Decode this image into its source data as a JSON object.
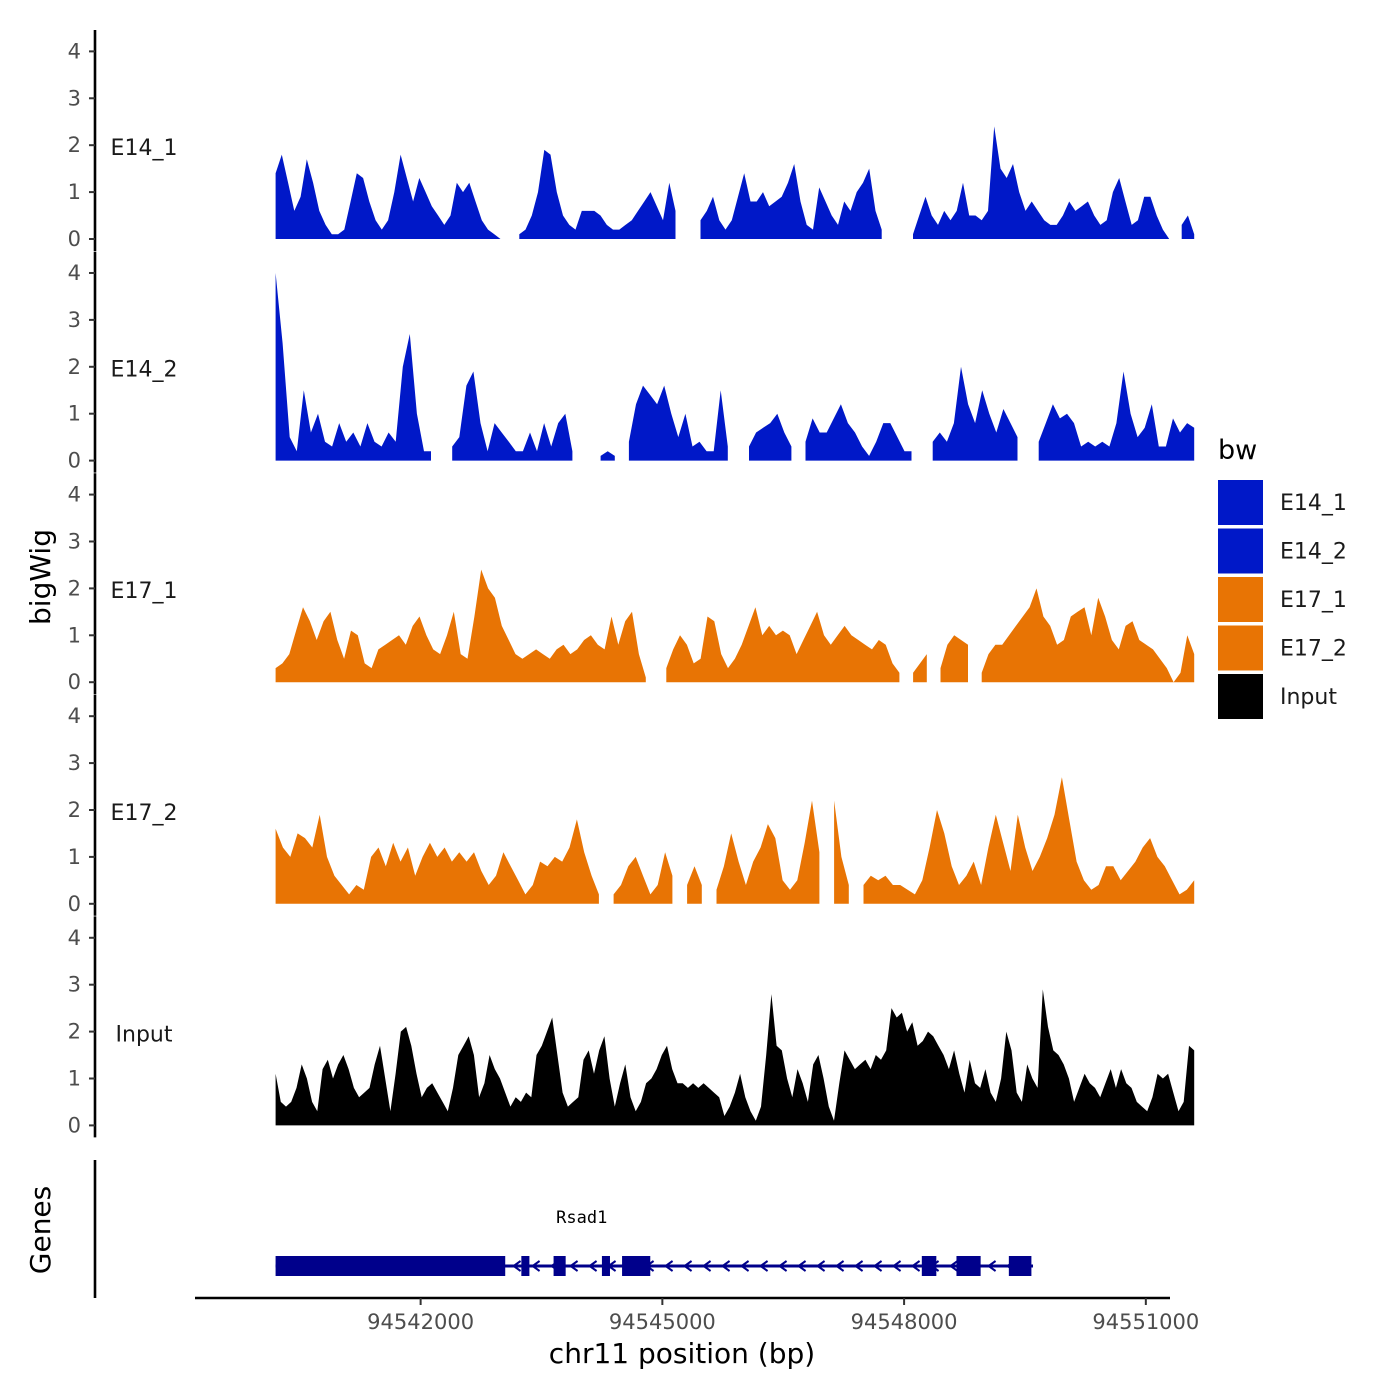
{
  "chart_data": {
    "type": "area",
    "chromosome": "chr11",
    "xlabel": "chr11 position (bp)",
    "ylabel": "bigWig",
    "genes_label": "Genes",
    "xlim": [
      94539200,
      94551300
    ],
    "data_x_range": [
      94540200,
      94551600
    ],
    "xticks": [
      94542000,
      94545000,
      94548000,
      94551000
    ],
    "xtick_labels": [
      "94542000",
      "94545000",
      "94548000",
      "94551000"
    ],
    "ylim": [
      0,
      4.2
    ],
    "yticks": [
      0,
      1,
      2,
      3,
      4
    ],
    "ytick_labels": [
      "0",
      "1",
      "2",
      "3",
      "4"
    ],
    "legend": {
      "title": "bw",
      "position": "right",
      "entries": [
        {
          "name": "E14_1",
          "color": "#0018c8"
        },
        {
          "name": "E14_2",
          "color": "#0018c8"
        },
        {
          "name": "E17_1",
          "color": "#e87404"
        },
        {
          "name": "E17_2",
          "color": "#e87404"
        },
        {
          "name": "Input",
          "color": "#000000"
        }
      ]
    },
    "series": [
      {
        "name": "E14_1",
        "color": "#0018c8",
        "values": [
          1.4,
          1.8,
          1.2,
          0.6,
          0.9,
          1.7,
          1.2,
          0.6,
          0.3,
          0.1,
          0.1,
          0.2,
          0.8,
          1.4,
          1.3,
          0.8,
          0.4,
          0.2,
          0.4,
          1.0,
          1.8,
          1.3,
          0.8,
          1.3,
          1.0,
          0.7,
          0.5,
          0.3,
          0.5,
          1.2,
          1.0,
          1.2,
          0.8,
          0.4,
          0.2,
          0.1,
          0.0,
          null,
          null,
          0.1,
          0.2,
          0.5,
          1.0,
          1.9,
          1.8,
          1.0,
          0.5,
          0.3,
          0.2,
          0.6,
          0.6,
          0.6,
          0.5,
          0.3,
          0.2,
          0.2,
          0.3,
          0.4,
          0.6,
          0.8,
          1.0,
          0.7,
          0.4,
          1.2,
          0.6,
          null,
          null,
          null,
          0.4,
          0.6,
          0.9,
          0.4,
          0.2,
          0.4,
          0.9,
          1.4,
          0.8,
          0.8,
          1.0,
          0.7,
          0.8,
          0.9,
          1.2,
          1.6,
          0.8,
          0.3,
          0.2,
          1.1,
          0.8,
          0.5,
          0.3,
          0.8,
          0.6,
          1.0,
          1.2,
          1.5,
          0.6,
          0.2,
          null,
          null,
          null,
          null,
          0.1,
          0.5,
          0.9,
          0.5,
          0.3,
          0.6,
          0.4,
          0.6,
          1.2,
          0.5,
          0.5,
          0.4,
          0.6,
          2.4,
          1.5,
          1.3,
          1.6,
          1.0,
          0.6,
          0.8,
          0.6,
          0.4,
          0.3,
          0.3,
          0.5,
          0.8,
          0.6,
          0.7,
          0.8,
          0.5,
          0.3,
          0.4,
          1.0,
          1.3,
          0.8,
          0.3,
          0.4,
          0.9,
          0.9,
          0.5,
          0.2,
          0.0,
          null,
          0.3,
          0.5,
          0.1
        ]
      },
      {
        "name": "E14_2",
        "color": "#0018c8",
        "values": [
          4.0,
          2.5,
          0.5,
          0.2,
          1.5,
          0.6,
          1.0,
          0.4,
          0.3,
          0.8,
          0.4,
          0.6,
          0.3,
          0.8,
          0.4,
          0.3,
          0.6,
          0.4,
          2.0,
          2.7,
          1.0,
          0.2,
          0.2,
          null,
          null,
          0.3,
          0.5,
          1.6,
          1.9,
          0.8,
          0.2,
          0.8,
          0.6,
          0.4,
          0.2,
          0.2,
          0.6,
          0.2,
          0.8,
          0.3,
          0.8,
          1.0,
          0.2,
          null,
          null,
          null,
          0.1,
          0.2,
          0.1,
          null,
          0.4,
          1.2,
          1.6,
          1.4,
          1.2,
          1.6,
          1.0,
          0.5,
          1.0,
          0.3,
          0.4,
          0.2,
          0.2,
          1.5,
          0.3,
          null,
          null,
          0.3,
          0.6,
          0.7,
          0.8,
          1.0,
          0.6,
          0.3,
          null,
          0.4,
          0.9,
          0.6,
          0.6,
          0.9,
          1.2,
          0.8,
          0.6,
          0.3,
          0.1,
          0.4,
          0.8,
          0.8,
          0.5,
          0.2,
          0.2,
          null,
          null,
          0.4,
          0.6,
          0.4,
          0.8,
          2.0,
          1.2,
          0.8,
          1.5,
          1.0,
          0.6,
          1.1,
          0.8,
          0.5,
          null,
          null,
          0.4,
          0.8,
          1.2,
          0.9,
          1.0,
          0.8,
          0.3,
          0.4,
          0.3,
          0.4,
          0.3,
          0.8,
          1.9,
          1.0,
          0.5,
          0.7,
          1.2,
          0.3,
          0.3,
          0.9,
          0.6,
          0.8,
          0.7
        ]
      },
      {
        "name": "E17_1",
        "color": "#e87404",
        "values": [
          0.3,
          0.4,
          0.6,
          1.1,
          1.6,
          1.3,
          0.9,
          1.3,
          1.5,
          0.9,
          0.5,
          1.1,
          1.0,
          0.4,
          0.3,
          0.7,
          0.8,
          0.9,
          1.0,
          0.8,
          1.2,
          1.4,
          1.0,
          0.7,
          0.6,
          1.0,
          1.5,
          0.6,
          0.5,
          1.4,
          2.4,
          2.0,
          1.8,
          1.2,
          0.9,
          0.6,
          0.5,
          0.6,
          0.7,
          0.6,
          0.5,
          0.7,
          0.8,
          0.6,
          0.7,
          0.9,
          1.0,
          0.8,
          0.7,
          1.4,
          0.8,
          1.3,
          1.5,
          0.6,
          0.1,
          null,
          null,
          0.3,
          0.7,
          1.0,
          0.8,
          0.4,
          0.5,
          1.4,
          1.3,
          0.6,
          0.3,
          0.5,
          0.8,
          1.2,
          1.6,
          1.0,
          1.2,
          1.0,
          1.1,
          1.0,
          0.6,
          0.9,
          1.2,
          1.5,
          1.0,
          0.8,
          1.0,
          1.2,
          1.0,
          0.9,
          0.8,
          0.7,
          0.9,
          0.8,
          0.4,
          0.2,
          null,
          0.2,
          0.4,
          0.6,
          null,
          0.3,
          0.8,
          1.0,
          0.9,
          0.8,
          null,
          0.2,
          0.6,
          0.8,
          0.8,
          1.0,
          1.2,
          1.4,
          1.6,
          2.0,
          1.4,
          1.2,
          0.8,
          0.9,
          1.4,
          1.5,
          1.6,
          1.0,
          1.8,
          1.4,
          0.9,
          0.7,
          1.2,
          1.3,
          0.9,
          0.8,
          0.7,
          0.5,
          0.3,
          0.0,
          0.2,
          1.0,
          0.6
        ]
      },
      {
        "name": "E17_2",
        "color": "#e87404",
        "values": [
          1.6,
          1.2,
          1.0,
          1.5,
          1.4,
          1.2,
          1.9,
          1.0,
          0.6,
          0.4,
          0.2,
          0.4,
          0.3,
          1.0,
          1.2,
          0.8,
          1.3,
          0.9,
          1.2,
          0.6,
          1.0,
          1.3,
          1.0,
          1.2,
          0.9,
          1.1,
          0.9,
          1.1,
          0.7,
          0.4,
          0.6,
          1.1,
          0.8,
          0.5,
          0.2,
          0.4,
          0.9,
          0.8,
          1.0,
          0.9,
          1.2,
          1.8,
          1.1,
          0.6,
          0.2,
          null,
          0.2,
          0.4,
          0.8,
          1.0,
          0.6,
          0.2,
          0.4,
          1.1,
          0.6,
          null,
          0.4,
          0.8,
          0.4,
          null,
          0.3,
          0.8,
          1.5,
          0.9,
          0.4,
          0.9,
          1.2,
          1.7,
          1.4,
          0.5,
          0.3,
          0.5,
          1.3,
          2.2,
          1.1,
          null,
          2.2,
          1.0,
          0.4,
          null,
          0.4,
          0.6,
          0.5,
          0.6,
          0.4,
          0.4,
          0.3,
          0.2,
          0.5,
          1.2,
          2.0,
          1.5,
          0.8,
          0.4,
          0.6,
          0.9,
          0.4,
          1.2,
          1.9,
          1.3,
          0.7,
          1.9,
          1.2,
          0.7,
          1.0,
          1.4,
          1.9,
          2.7,
          1.8,
          0.9,
          0.5,
          0.3,
          0.4,
          0.8,
          0.8,
          0.5,
          0.7,
          0.9,
          1.2,
          1.4,
          1.0,
          0.8,
          0.5,
          0.2,
          0.3,
          0.5
        ]
      },
      {
        "name": "Input",
        "color": "#000000",
        "values": [
          1.1,
          0.5,
          0.4,
          0.5,
          0.8,
          1.3,
          1.0,
          0.5,
          0.3,
          1.2,
          1.4,
          1.0,
          1.3,
          1.5,
          1.2,
          0.8,
          0.6,
          0.7,
          0.8,
          1.3,
          1.7,
          1.0,
          0.3,
          1.1,
          2.0,
          2.1,
          1.7,
          1.1,
          0.6,
          0.8,
          0.9,
          0.7,
          0.5,
          0.3,
          0.8,
          1.5,
          1.7,
          1.9,
          1.5,
          0.6,
          0.9,
          1.5,
          1.2,
          1.0,
          0.7,
          0.4,
          0.6,
          0.5,
          0.7,
          0.6,
          1.5,
          1.7,
          2.0,
          2.3,
          1.5,
          0.7,
          0.4,
          0.5,
          0.6,
          1.4,
          1.6,
          1.1,
          1.6,
          1.9,
          1.0,
          0.4,
          0.9,
          1.3,
          0.6,
          0.3,
          0.5,
          0.9,
          1.0,
          1.2,
          1.5,
          1.7,
          1.2,
          0.9,
          0.9,
          0.8,
          0.9,
          0.8,
          0.9,
          0.8,
          0.7,
          0.6,
          0.2,
          0.4,
          0.7,
          1.1,
          0.6,
          0.3,
          0.1,
          0.4,
          1.5,
          2.8,
          1.7,
          1.6,
          1.0,
          0.6,
          1.2,
          0.9,
          0.5,
          1.3,
          1.5,
          1.0,
          0.4,
          0.1,
          0.9,
          1.6,
          1.4,
          1.2,
          1.3,
          1.4,
          1.2,
          1.5,
          1.4,
          1.6,
          2.5,
          2.3,
          2.4,
          2.0,
          2.2,
          1.7,
          1.8,
          2.0,
          1.9,
          1.7,
          1.5,
          1.2,
          1.6,
          1.1,
          0.7,
          1.4,
          0.9,
          0.8,
          1.2,
          0.7,
          0.5,
          1.0,
          2.0,
          1.6,
          0.7,
          0.5,
          1.3,
          1.0,
          0.8,
          2.9,
          2.1,
          1.6,
          1.5,
          1.3,
          1.0,
          0.5,
          0.8,
          1.1,
          0.9,
          0.8,
          0.6,
          0.9,
          1.2,
          0.8,
          1.2,
          0.9,
          0.8,
          0.5,
          0.4,
          0.3,
          0.6,
          1.1,
          1.0,
          1.1,
          0.7,
          0.3,
          0.5,
          1.7,
          1.6
        ]
      }
    ],
    "gene": {
      "name": "Rsad1",
      "strand": "-",
      "start": 94540200,
      "end": 94549600,
      "color": "#00008b",
      "exons": [
        [
          94540200,
          94543050
        ],
        [
          94543250,
          94543350
        ],
        [
          94543650,
          94543800
        ],
        [
          94544250,
          94544350
        ],
        [
          94544500,
          94544850
        ],
        [
          94548220,
          94548400
        ],
        [
          94548650,
          94548950
        ],
        [
          94549300,
          94549580
        ]
      ]
    }
  }
}
